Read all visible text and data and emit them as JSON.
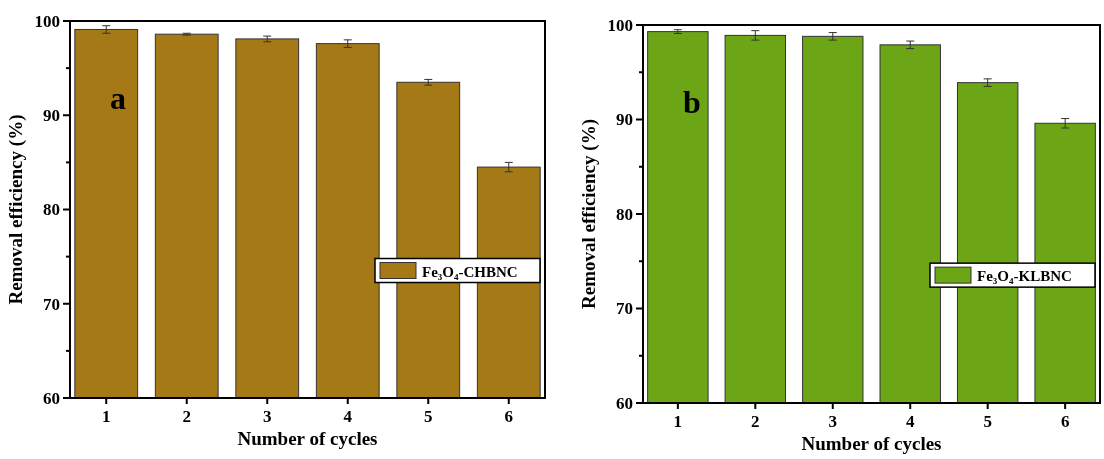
{
  "chart_data": [
    {
      "type": "bar",
      "categories": [
        "1",
        "2",
        "3",
        "4",
        "5",
        "6"
      ],
      "xlabel": "Number of cycles",
      "ylabel": "Removal efficiency (%)",
      "annotations": [
        "a"
      ],
      "ylim": [
        60,
        100
      ],
      "yticks": [
        60,
        {
          "value": 65,
          "label": null
        },
        70,
        {
          "value": 75,
          "label": null
        },
        80,
        {
          "value": 85,
          "label": null
        },
        90,
        {
          "value": 95,
          "label": null
        },
        100
      ],
      "legend": "right",
      "series": [
        {
          "name": "Fe₃O₄-CHBNC",
          "color": "#a57a16",
          "values": [
            99.1,
            98.6,
            98.1,
            97.6,
            93.5,
            84.5
          ],
          "errors": [
            0.4,
            0.1,
            0.3,
            0.4,
            0.3,
            0.5
          ]
        }
      ]
    },
    {
      "type": "bar",
      "categories": [
        "1",
        "2",
        "3",
        "4",
        "5",
        "6"
      ],
      "xlabel": "Number of cycles",
      "ylabel": "Removal efficiency (%)",
      "annotations": [
        "b"
      ],
      "ylim": [
        60,
        100
      ],
      "yticks": [
        60,
        {
          "value": 65,
          "label": null
        },
        70,
        {
          "value": 75,
          "label": null
        },
        80,
        {
          "value": 85,
          "label": null
        },
        90,
        {
          "value": 95,
          "label": null
        },
        100
      ],
      "legend": "right",
      "series": [
        {
          "name": "Fe₃O₄-KLBNC",
          "color": "#6ca617",
          "values": [
            99.3,
            98.9,
            98.8,
            97.9,
            93.9,
            89.6
          ],
          "errors": [
            0.2,
            0.5,
            0.4,
            0.4,
            0.4,
            0.5
          ]
        }
      ]
    }
  ]
}
